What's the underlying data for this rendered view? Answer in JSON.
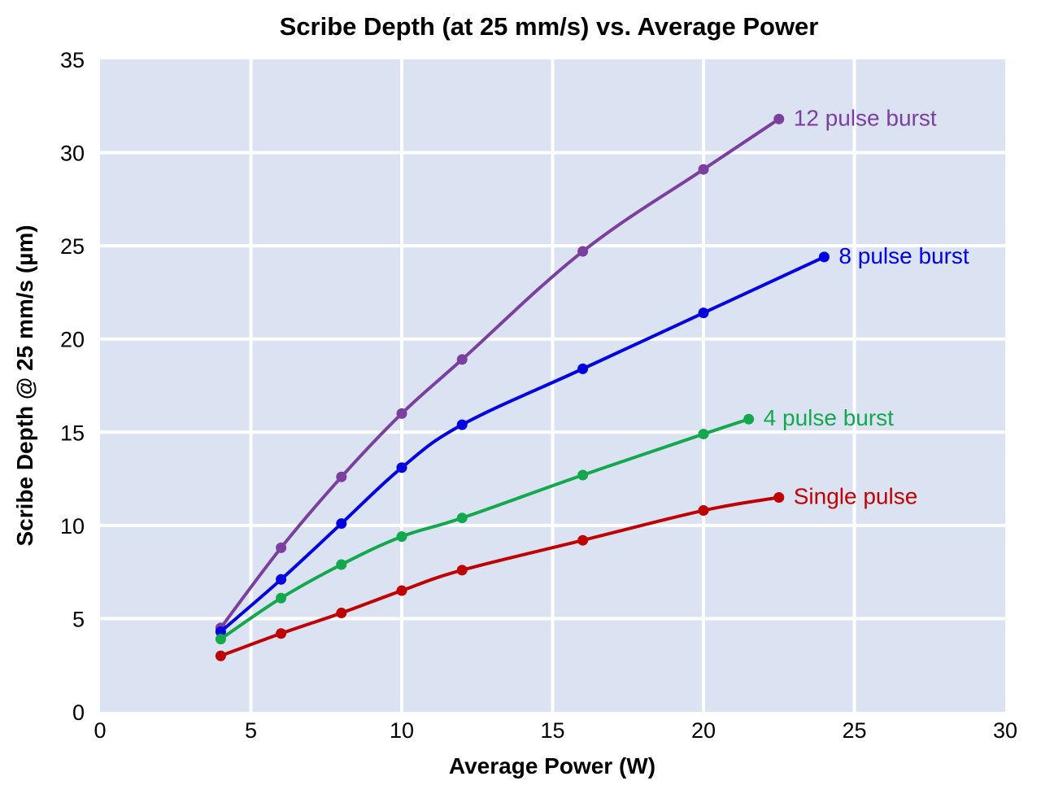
{
  "chart_data": {
    "type": "line",
    "title": "Scribe Depth (at 25 mm/s) vs. Average Power",
    "xlabel": "Average Power (W)",
    "ylabel": "Scribe Depth @ 25 mm/s (µm)",
    "xlim": [
      0,
      30
    ],
    "ylim": [
      0,
      35
    ],
    "xticks": [
      0,
      5,
      10,
      15,
      20,
      25,
      30
    ],
    "yticks": [
      0,
      5,
      10,
      15,
      20,
      25,
      30,
      35
    ],
    "grid": true,
    "legend": "inline labels at line ends",
    "background_color": "#dbe3f2",
    "grid_color": "#ffffff",
    "series": [
      {
        "name": "12 pulse burst",
        "color": "#7b3fa0",
        "points": [
          [
            4,
            4.5
          ],
          [
            6,
            8.8
          ],
          [
            8,
            12.6
          ],
          [
            10,
            16.0
          ],
          [
            12,
            18.9
          ],
          [
            16,
            24.7
          ],
          [
            20,
            29.1
          ],
          [
            22.5,
            31.8
          ]
        ]
      },
      {
        "name": "8 pulse burst",
        "color": "#0000e0",
        "points": [
          [
            4,
            4.3
          ],
          [
            6,
            7.1
          ],
          [
            8,
            10.1
          ],
          [
            10,
            13.1
          ],
          [
            12,
            15.4
          ],
          [
            16,
            18.4
          ],
          [
            20,
            21.4
          ],
          [
            24,
            24.4
          ]
        ]
      },
      {
        "name": "4 pulse burst",
        "color": "#13a84e",
        "points": [
          [
            4,
            3.9
          ],
          [
            6,
            6.1
          ],
          [
            8,
            7.9
          ],
          [
            10,
            9.4
          ],
          [
            12,
            10.4
          ],
          [
            16,
            12.7
          ],
          [
            20,
            14.9
          ],
          [
            21.5,
            15.7
          ]
        ]
      },
      {
        "name": "Single pulse",
        "color": "#c00000",
        "points": [
          [
            4,
            3.0
          ],
          [
            6,
            4.2
          ],
          [
            8,
            5.3
          ],
          [
            10,
            6.5
          ],
          [
            12,
            7.6
          ],
          [
            16,
            9.2
          ],
          [
            20,
            10.8
          ],
          [
            22.5,
            11.5
          ]
        ]
      }
    ]
  }
}
